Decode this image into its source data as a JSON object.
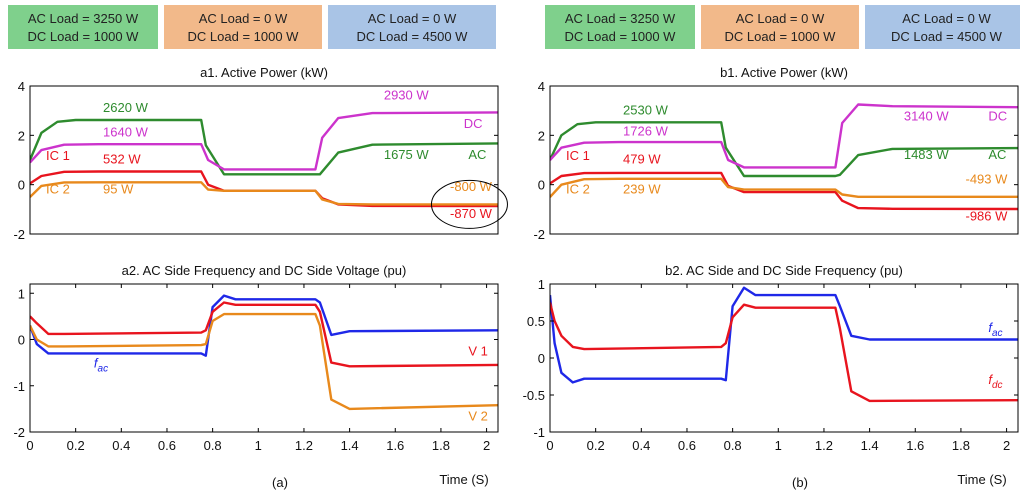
{
  "colors": {
    "green": "#2e8b2e",
    "magenta": "#cc33cc",
    "red": "#e8141e",
    "orange": "#e8891c",
    "blue": "#1f28e8",
    "box_green": "#7fd08c",
    "box_orange": "#f2b98a",
    "box_blue": "#a9c4e6"
  },
  "load_boxes": [
    {
      "line1": "AC Load  = 3250 W",
      "line2": "DC Load = 1000 W",
      "color": "box_green"
    },
    {
      "line1": "AC Load  =   0   W",
      "line2": "DC Load = 1000 W",
      "color": "box_orange"
    },
    {
      "line1": "AC Load =    0   W",
      "line2": "DC Load = 4500 W",
      "color": "box_blue"
    }
  ],
  "panel_labels": {
    "left": "(a)",
    "right": "(b)"
  },
  "time_axis_label": "Time (S)",
  "chart_data": [
    {
      "id": "a1",
      "type": "line",
      "title": "a1. Active Power (kW)",
      "xlim": [
        0,
        2.05
      ],
      "ylim": [
        -2,
        4
      ],
      "xticks": [],
      "yticks": [
        -2,
        0,
        2,
        4
      ],
      "series": [
        {
          "color": "green",
          "x": [
            0,
            0.05,
            0.12,
            0.2,
            0.75,
            0.77,
            0.85,
            1.25,
            1.27,
            1.35,
            1.5,
            2.05
          ],
          "y": [
            1.0,
            2.1,
            2.55,
            2.62,
            2.62,
            1.6,
            0.42,
            0.42,
            0.42,
            1.3,
            1.62,
            1.675
          ]
        },
        {
          "color": "magenta",
          "x": [
            0,
            0.05,
            0.15,
            0.3,
            0.75,
            0.78,
            0.85,
            1.25,
            1.28,
            1.35,
            1.5,
            2.05
          ],
          "y": [
            0.9,
            1.4,
            1.62,
            1.64,
            1.64,
            1.0,
            0.62,
            0.62,
            1.9,
            2.7,
            2.9,
            2.93
          ]
        },
        {
          "color": "red",
          "x": [
            0,
            0.05,
            0.15,
            0.3,
            0.75,
            0.78,
            0.85,
            1.25,
            1.28,
            1.35,
            1.5,
            2.05
          ],
          "y": [
            0.05,
            0.35,
            0.52,
            0.532,
            0.532,
            0.0,
            -0.25,
            -0.25,
            -0.55,
            -0.8,
            -0.86,
            -0.87
          ]
        },
        {
          "color": "orange",
          "x": [
            0,
            0.05,
            0.15,
            0.3,
            0.75,
            0.78,
            0.85,
            1.25,
            1.28,
            1.35,
            1.5,
            2.05
          ],
          "y": [
            -0.5,
            -0.05,
            0.09,
            0.095,
            0.095,
            -0.2,
            -0.25,
            -0.25,
            -0.6,
            -0.78,
            -0.8,
            -0.8
          ]
        }
      ],
      "annotations": [
        {
          "text": "2620 W",
          "x": 0.32,
          "y": 2.95,
          "color": "green"
        },
        {
          "text": "1640 W",
          "x": 0.32,
          "y": 1.95,
          "color": "magenta"
        },
        {
          "text": "IC 1",
          "x": 0.07,
          "y": 1.0,
          "color": "red"
        },
        {
          "text": "532 W",
          "x": 0.32,
          "y": 0.85,
          "color": "red"
        },
        {
          "text": "IC 2",
          "x": 0.07,
          "y": -0.35,
          "color": "orange"
        },
        {
          "text": "95 W",
          "x": 0.32,
          "y": -0.35,
          "color": "orange"
        },
        {
          "text": "2930 W",
          "x": 1.55,
          "y": 3.45,
          "color": "magenta"
        },
        {
          "text": "DC",
          "x": 1.9,
          "y": 2.3,
          "color": "magenta"
        },
        {
          "text": "1675 W",
          "x": 1.55,
          "y": 1.05,
          "color": "green"
        },
        {
          "text": "AC",
          "x": 1.92,
          "y": 1.05,
          "color": "green"
        },
        {
          "text": "-800 W",
          "x": 1.84,
          "y": -0.25,
          "color": "orange"
        },
        {
          "text": "-870 W",
          "x": 1.84,
          "y": -1.35,
          "color": "red"
        }
      ]
    },
    {
      "id": "a2",
      "type": "line",
      "title": "a2. AC Side Frequency and DC Side Voltage (pu)",
      "xlim": [
        0,
        2.05
      ],
      "ylim": [
        -2,
        1.2
      ],
      "xticks": [
        0,
        0.2,
        0.4,
        0.6,
        0.8,
        1,
        1.2,
        1.4,
        1.6,
        1.8,
        2
      ],
      "yticks": [
        -2,
        -1,
        0,
        1
      ],
      "series": [
        {
          "color": "blue",
          "x": [
            0,
            0.03,
            0.08,
            0.15,
            0.75,
            0.77,
            0.8,
            0.85,
            0.9,
            1.25,
            1.27,
            1.32,
            1.4,
            2.05
          ],
          "y": [
            0.3,
            -0.1,
            -0.3,
            -0.3,
            -0.3,
            -0.35,
            0.7,
            0.95,
            0.87,
            0.87,
            0.8,
            0.1,
            0.18,
            0.2
          ]
        },
        {
          "color": "red",
          "x": [
            0,
            0.03,
            0.08,
            0.15,
            0.75,
            0.77,
            0.8,
            0.85,
            0.9,
            1.25,
            1.27,
            1.32,
            1.4,
            2.05
          ],
          "y": [
            0.5,
            0.35,
            0.12,
            0.12,
            0.15,
            0.2,
            0.6,
            0.8,
            0.75,
            0.75,
            0.6,
            -0.5,
            -0.58,
            -0.55
          ]
        },
        {
          "color": "orange",
          "x": [
            0,
            0.03,
            0.08,
            0.15,
            0.75,
            0.77,
            0.8,
            0.85,
            0.9,
            1.25,
            1.27,
            1.32,
            1.4,
            2.05
          ],
          "y": [
            0.3,
            0.0,
            -0.15,
            -0.15,
            -0.12,
            -0.1,
            0.4,
            0.55,
            0.55,
            0.55,
            0.3,
            -1.3,
            -1.5,
            -1.42
          ]
        }
      ],
      "annotations": [
        {
          "text": "f",
          "sub": "ac",
          "x": 0.28,
          "y": -0.6,
          "color": "blue"
        },
        {
          "text": "V 1",
          "x": 1.92,
          "y": -0.35,
          "color": "red"
        },
        {
          "text": "V 2",
          "x": 1.92,
          "y": -1.75,
          "color": "orange"
        }
      ]
    },
    {
      "id": "b1",
      "type": "line",
      "title": "b1. Active Power (kW)",
      "xlim": [
        0,
        2.05
      ],
      "ylim": [
        -2,
        4
      ],
      "xticks": [],
      "yticks": [
        -2,
        0,
        2,
        4
      ],
      "series": [
        {
          "color": "green",
          "x": [
            0,
            0.05,
            0.12,
            0.2,
            0.75,
            0.77,
            0.85,
            1.25,
            1.27,
            1.35,
            1.5,
            2.05
          ],
          "y": [
            1.0,
            2.0,
            2.45,
            2.53,
            2.53,
            1.5,
            0.35,
            0.35,
            0.4,
            1.2,
            1.45,
            1.483
          ]
        },
        {
          "color": "magenta",
          "x": [
            0,
            0.05,
            0.15,
            0.3,
            0.75,
            0.78,
            0.85,
            1.25,
            1.28,
            1.35,
            1.5,
            2.05
          ],
          "y": [
            1.0,
            1.5,
            1.7,
            1.726,
            1.726,
            1.0,
            0.7,
            0.7,
            2.5,
            3.25,
            3.18,
            3.14
          ]
        },
        {
          "color": "red",
          "x": [
            0,
            0.05,
            0.15,
            0.3,
            0.75,
            0.78,
            0.85,
            1.25,
            1.28,
            1.35,
            1.5,
            2.05
          ],
          "y": [
            0.05,
            0.35,
            0.47,
            0.479,
            0.479,
            -0.05,
            -0.3,
            -0.3,
            -0.65,
            -0.95,
            -0.98,
            -0.986
          ]
        },
        {
          "color": "orange",
          "x": [
            0,
            0.05,
            0.15,
            0.3,
            0.75,
            0.78,
            0.85,
            1.25,
            1.28,
            1.35,
            1.5,
            2.05
          ],
          "y": [
            -0.5,
            0.0,
            0.22,
            0.239,
            0.239,
            -0.1,
            -0.2,
            -0.2,
            -0.4,
            -0.49,
            -0.49,
            -0.493
          ]
        }
      ],
      "annotations": [
        {
          "text": "2530 W",
          "x": 0.32,
          "y": 2.85,
          "color": "green"
        },
        {
          "text": "1726 W",
          "x": 0.32,
          "y": 2.0,
          "color": "magenta"
        },
        {
          "text": "IC 1",
          "x": 0.07,
          "y": 1.0,
          "color": "red"
        },
        {
          "text": "479 W",
          "x": 0.32,
          "y": 0.85,
          "color": "red"
        },
        {
          "text": "IC 2",
          "x": 0.07,
          "y": -0.35,
          "color": "orange"
        },
        {
          "text": "239 W",
          "x": 0.32,
          "y": -0.35,
          "color": "orange"
        },
        {
          "text": "3140 W",
          "x": 1.55,
          "y": 2.6,
          "color": "magenta"
        },
        {
          "text": "DC",
          "x": 1.92,
          "y": 2.6,
          "color": "magenta"
        },
        {
          "text": "1483 W",
          "x": 1.55,
          "y": 1.05,
          "color": "green"
        },
        {
          "text": "AC",
          "x": 1.92,
          "y": 1.05,
          "color": "green"
        },
        {
          "text": "-493 W",
          "x": 1.82,
          "y": 0.05,
          "color": "orange"
        },
        {
          "text": "-986 W",
          "x": 1.82,
          "y": -1.45,
          "color": "red"
        }
      ]
    },
    {
      "id": "b2",
      "type": "line",
      "title": "b2. AC Side and DC Side Frequency (pu)",
      "xlim": [
        0,
        2.05
      ],
      "ylim": [
        -1,
        1.0
      ],
      "xticks": [
        0,
        0.2,
        0.4,
        0.6,
        0.8,
        1,
        1.2,
        1.4,
        1.6,
        1.8,
        2
      ],
      "yticks": [
        -1,
        -0.5,
        0,
        0.5,
        1
      ],
      "series": [
        {
          "color": "blue",
          "x": [
            0,
            0.02,
            0.05,
            0.1,
            0.15,
            0.75,
            0.77,
            0.8,
            0.85,
            0.9,
            1.25,
            1.27,
            1.32,
            1.4,
            2.05
          ],
          "y": [
            0.85,
            0.2,
            -0.2,
            -0.33,
            -0.28,
            -0.28,
            -0.3,
            0.7,
            0.95,
            0.85,
            0.85,
            0.7,
            0.3,
            0.25,
            0.25
          ]
        },
        {
          "color": "red",
          "x": [
            0,
            0.02,
            0.05,
            0.1,
            0.15,
            0.75,
            0.77,
            0.8,
            0.85,
            0.9,
            1.25,
            1.27,
            1.32,
            1.4,
            2.05
          ],
          "y": [
            0.75,
            0.5,
            0.3,
            0.15,
            0.12,
            0.15,
            0.2,
            0.55,
            0.72,
            0.68,
            0.68,
            0.4,
            -0.45,
            -0.58,
            -0.57
          ]
        }
      ],
      "annotations": [
        {
          "text": "f",
          "sub": "ac",
          "x": 1.92,
          "y": 0.35,
          "color": "blue"
        },
        {
          "text": "f",
          "sub": "dc",
          "x": 1.92,
          "y": -0.35,
          "color": "red"
        }
      ]
    }
  ]
}
